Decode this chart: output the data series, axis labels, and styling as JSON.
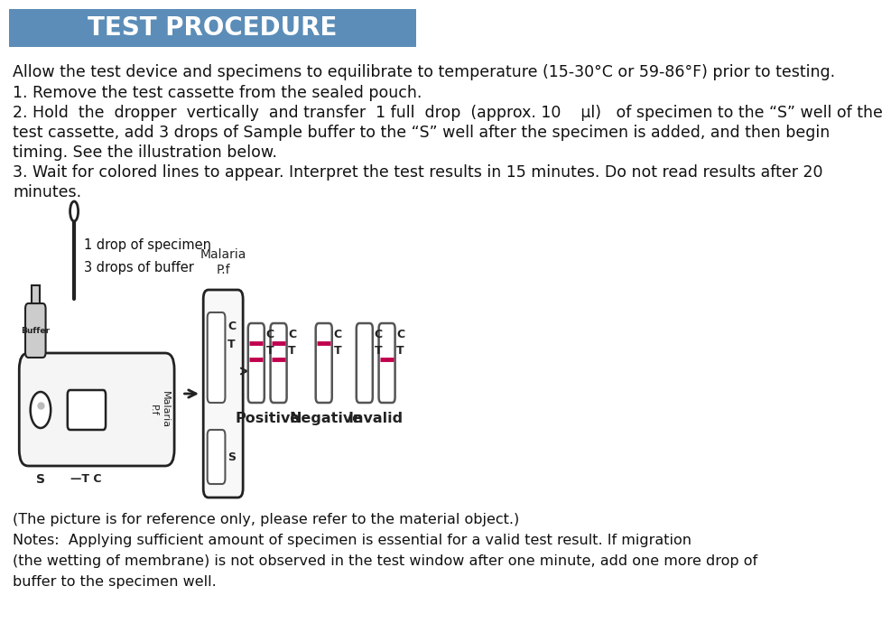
{
  "title": "TEST PROCEDURE",
  "title_bg": "#5b8db8",
  "title_color": "#ffffff",
  "bg_color": "#ffffff",
  "text_color": "#111111",
  "line0": "Allow the test device and specimens to equilibrate to temperature (15-30°C or 59-86°F) prior to testing.",
  "line1": "1. Remove the test cassette from the sealed pouch.",
  "line2a": "2. Hold  the  dropper  vertically  and transfer  1 full  drop  (approx. 10    μl)   of specimen to the “S” well of the",
  "line2b": "test cassette, add 3 drops of Sample buffer to the “S” well after the specimen is added, and then begin",
  "line2c": "timing. See the illustration below.",
  "line3": "3. Wait for colored lines to appear. Interpret the test results in 15 minutes. Do not read results after 20",
  "line3b": "minutes.",
  "note1": "(The picture is for reference only, please refer to the material object.)",
  "note2": "Notes:  Applying sufficient amount of specimen is essential for a valid test result. If migration",
  "note3": "(the wetting of membrane) is not observed in the test window after one minute, add one more drop of",
  "note4": "buffer to the specimen well.",
  "drop_text1": "1 drop of specimen",
  "drop_text2": "3 drops of buffer",
  "malaria_label": "Malaria\nP.f",
  "positive_label": "Positive",
  "negative_label": "Negative",
  "invalid_label": "Invalid",
  "pink_color": "#c0004e",
  "dark": "#222222",
  "mid": "#555555",
  "light_gray": "#aaaaaa"
}
